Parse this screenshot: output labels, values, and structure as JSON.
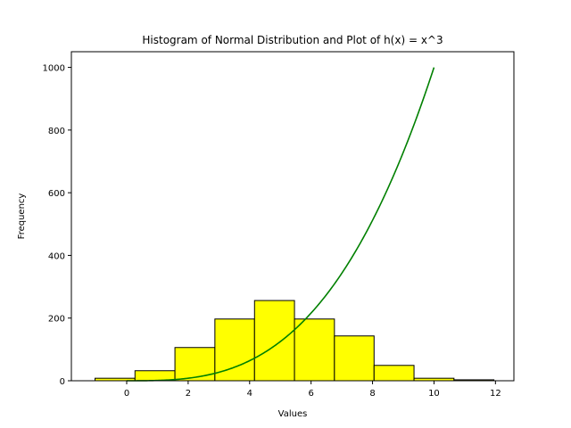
{
  "chart_data": {
    "type": "bar",
    "title": "Histogram of Normal Distribution and Plot of h(x) = x^3",
    "xlabel": "Values",
    "ylabel": "Frequency",
    "xlim": [
      -1.8,
      12.6
    ],
    "ylim": [
      0,
      1050
    ],
    "xticks": [
      0,
      2,
      4,
      6,
      8,
      10,
      12
    ],
    "yticks": [
      0,
      200,
      400,
      600,
      800,
      1000
    ],
    "grid": false,
    "histogram": {
      "bin_edges": [
        -1.03,
        0.27,
        1.57,
        2.87,
        4.16,
        5.46,
        6.76,
        8.05,
        9.35,
        10.65,
        11.95
      ],
      "counts": [
        8,
        32,
        106,
        197,
        256,
        197,
        143,
        49,
        8,
        3
      ],
      "fill_color": "#ffff00",
      "edge_color": "#000000"
    },
    "curve": {
      "function": "h(x) = x^3",
      "x_range": [
        0,
        10
      ],
      "color": "#008000"
    }
  }
}
